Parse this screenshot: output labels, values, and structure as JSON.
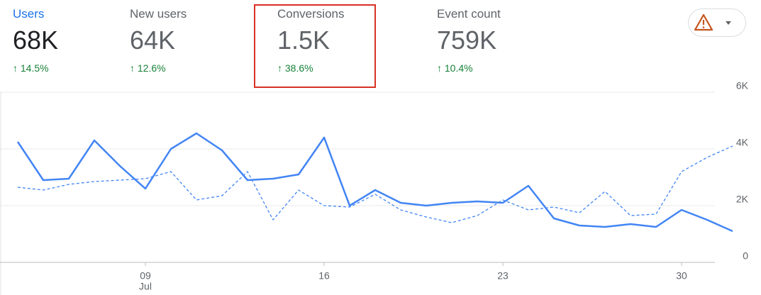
{
  "metrics": [
    {
      "label": "Users",
      "value": "68K",
      "change": "14.5%"
    },
    {
      "label": "New users",
      "value": "64K",
      "change": "12.6%"
    },
    {
      "label": "Conversions",
      "value": "1.5K",
      "change": "38.6%"
    },
    {
      "label": "Event count",
      "value": "759K",
      "change": "10.4%"
    }
  ],
  "chart_data": {
    "type": "line",
    "categories": [
      null,
      null,
      null,
      null,
      null,
      "09",
      null,
      null,
      null,
      null,
      null,
      null,
      "16",
      null,
      null,
      null,
      null,
      null,
      null,
      "23",
      null,
      null,
      null,
      null,
      null,
      null,
      "30",
      null,
      null
    ],
    "x_period_label": "Jul",
    "series": [
      {
        "color": "#4285f4",
        "style": "solid",
        "values": [
          4250,
          2900,
          2950,
          4300,
          3400,
          2600,
          4000,
          4550,
          3950,
          2900,
          2950,
          3100,
          4400,
          2000,
          2550,
          2100,
          2000,
          2100,
          2150,
          2100,
          2700,
          1550,
          1300,
          1250,
          1350,
          1250,
          1850,
          1500,
          1100
        ]
      },
      {
        "color": "#4285f4",
        "style": "dashed",
        "values": [
          2650,
          2550,
          2750,
          2850,
          2900,
          2950,
          3200,
          2200,
          2350,
          3200,
          1500,
          2550,
          2000,
          1950,
          2400,
          1850,
          1600,
          1400,
          1650,
          2200,
          1850,
          1950,
          1750,
          2500,
          1650,
          1700,
          3200,
          3700,
          4100
        ]
      }
    ],
    "ylim": [
      0,
      6000
    ],
    "yticks": [
      0,
      {
        "value": 2000,
        "label": "2K"
      },
      {
        "value": 4000,
        "label": "4K"
      },
      {
        "value": 6000,
        "label": "6K"
      }
    ],
    "grid": true,
    "y_axis_side": "right"
  }
}
